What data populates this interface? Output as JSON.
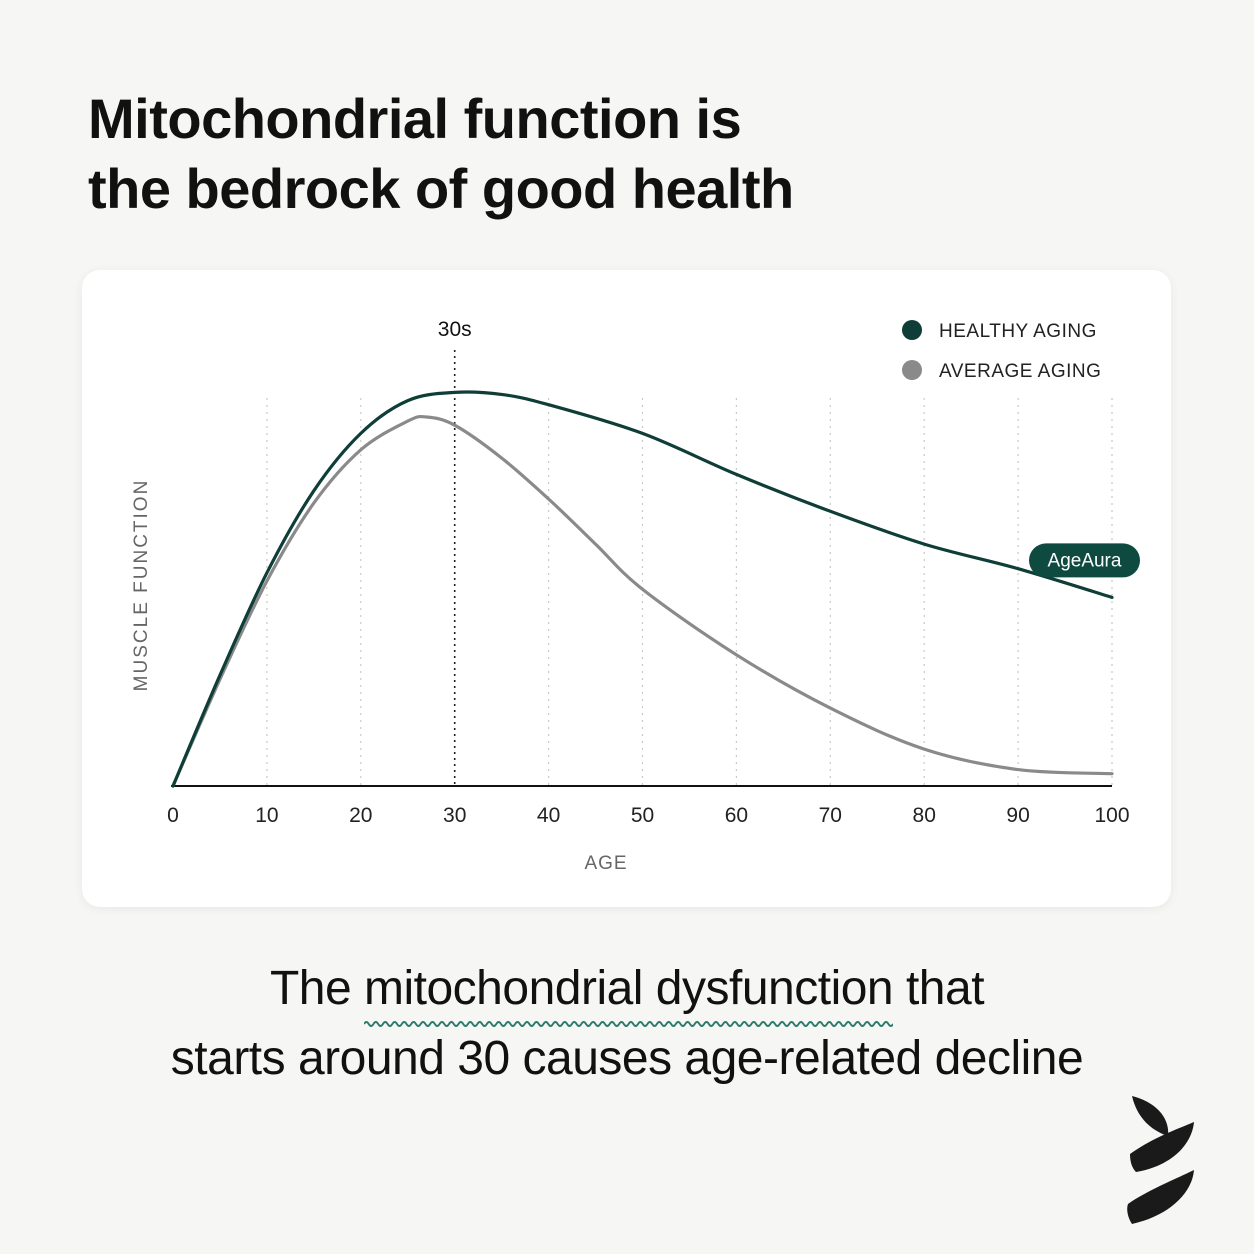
{
  "headline": {
    "line1": "Mitochondrial function is",
    "line2": "the bedrock of good health"
  },
  "colors": {
    "healthy": "#0f3d38",
    "average": "#8a8a8a",
    "badge_bg": "#0f4a40",
    "squiggle": "#2c7a6a",
    "background": "#f6f6f4"
  },
  "chart_data": {
    "type": "line",
    "xlabel": "AGE",
    "ylabel": "MUSCLE FUNCTION",
    "xlim": [
      0,
      100
    ],
    "ylim": [
      0,
      100
    ],
    "x_ticks": [
      0,
      10,
      20,
      30,
      40,
      50,
      60,
      70,
      80,
      90,
      100
    ],
    "grid": "vertical dotted",
    "legend_position": "top-right",
    "marker": {
      "x": 30,
      "label": "30s"
    },
    "series": [
      {
        "name": "HEALTHY AGING",
        "color": "#0f3d38",
        "x": [
          0,
          5,
          10,
          15,
          20,
          25,
          30,
          35,
          40,
          50,
          60,
          70,
          80,
          90,
          100
        ],
        "y": [
          0,
          27,
          52,
          72,
          86,
          94,
          96,
          95.5,
          93,
          86,
          76,
          67,
          59,
          53,
          46
        ]
      },
      {
        "name": "AVERAGE AGING",
        "color": "#8a8a8a",
        "x": [
          0,
          5,
          10,
          15,
          20,
          25,
          27,
          30,
          35,
          40,
          45,
          50,
          60,
          70,
          80,
          90,
          100
        ],
        "y": [
          0,
          26,
          50,
          69,
          82,
          89,
          90,
          88,
          80,
          70,
          59,
          48,
          32,
          19,
          9,
          4,
          3
        ]
      }
    ],
    "badge": {
      "label": "AgeAura",
      "series": "HEALTHY AGING"
    }
  },
  "tagline": {
    "line1_pre": "The ",
    "line1_highlight": "mitochondrial dysfunction",
    "line1_post": " that",
    "line2": "starts around 30 causes age-related decline"
  },
  "logo": {
    "icon": "leaf-logo-icon"
  }
}
